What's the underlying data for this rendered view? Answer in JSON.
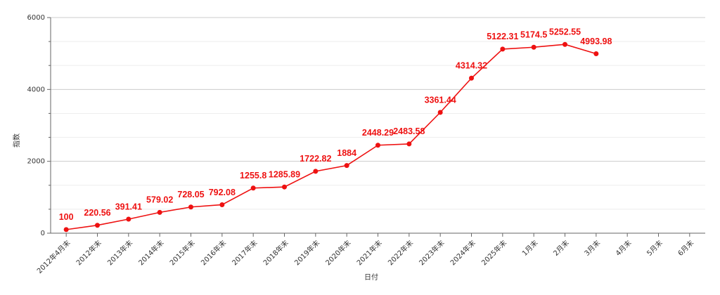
{
  "chart_data": {
    "type": "line",
    "x_label": "日付",
    "y_label": "指数",
    "categories": [
      "2012年4月末",
      "2012年末",
      "2013年末",
      "2014年末",
      "2015年末",
      "2016年末",
      "2017年末",
      "2018年末",
      "2019年末",
      "2020年末",
      "2021年末",
      "2022年末",
      "2023年末",
      "2024年末",
      "2025年末",
      "1月末",
      "2月末",
      "3月末",
      "4月末",
      "5月末",
      "6月末"
    ],
    "series": [
      {
        "name": "指数",
        "color": "#ee1111",
        "values": [
          100,
          220.56,
          391.41,
          579.02,
          728.05,
          792.08,
          1255.8,
          1285.89,
          1722.82,
          1884,
          2448.29,
          2483.58,
          3361.44,
          4314.32,
          5122.31,
          5174.5,
          5252.55,
          4993.98,
          null,
          null,
          null
        ]
      }
    ],
    "ylim": [
      0,
      6000
    ],
    "yticks": [
      0,
      2000,
      4000,
      6000
    ],
    "grid": true
  }
}
